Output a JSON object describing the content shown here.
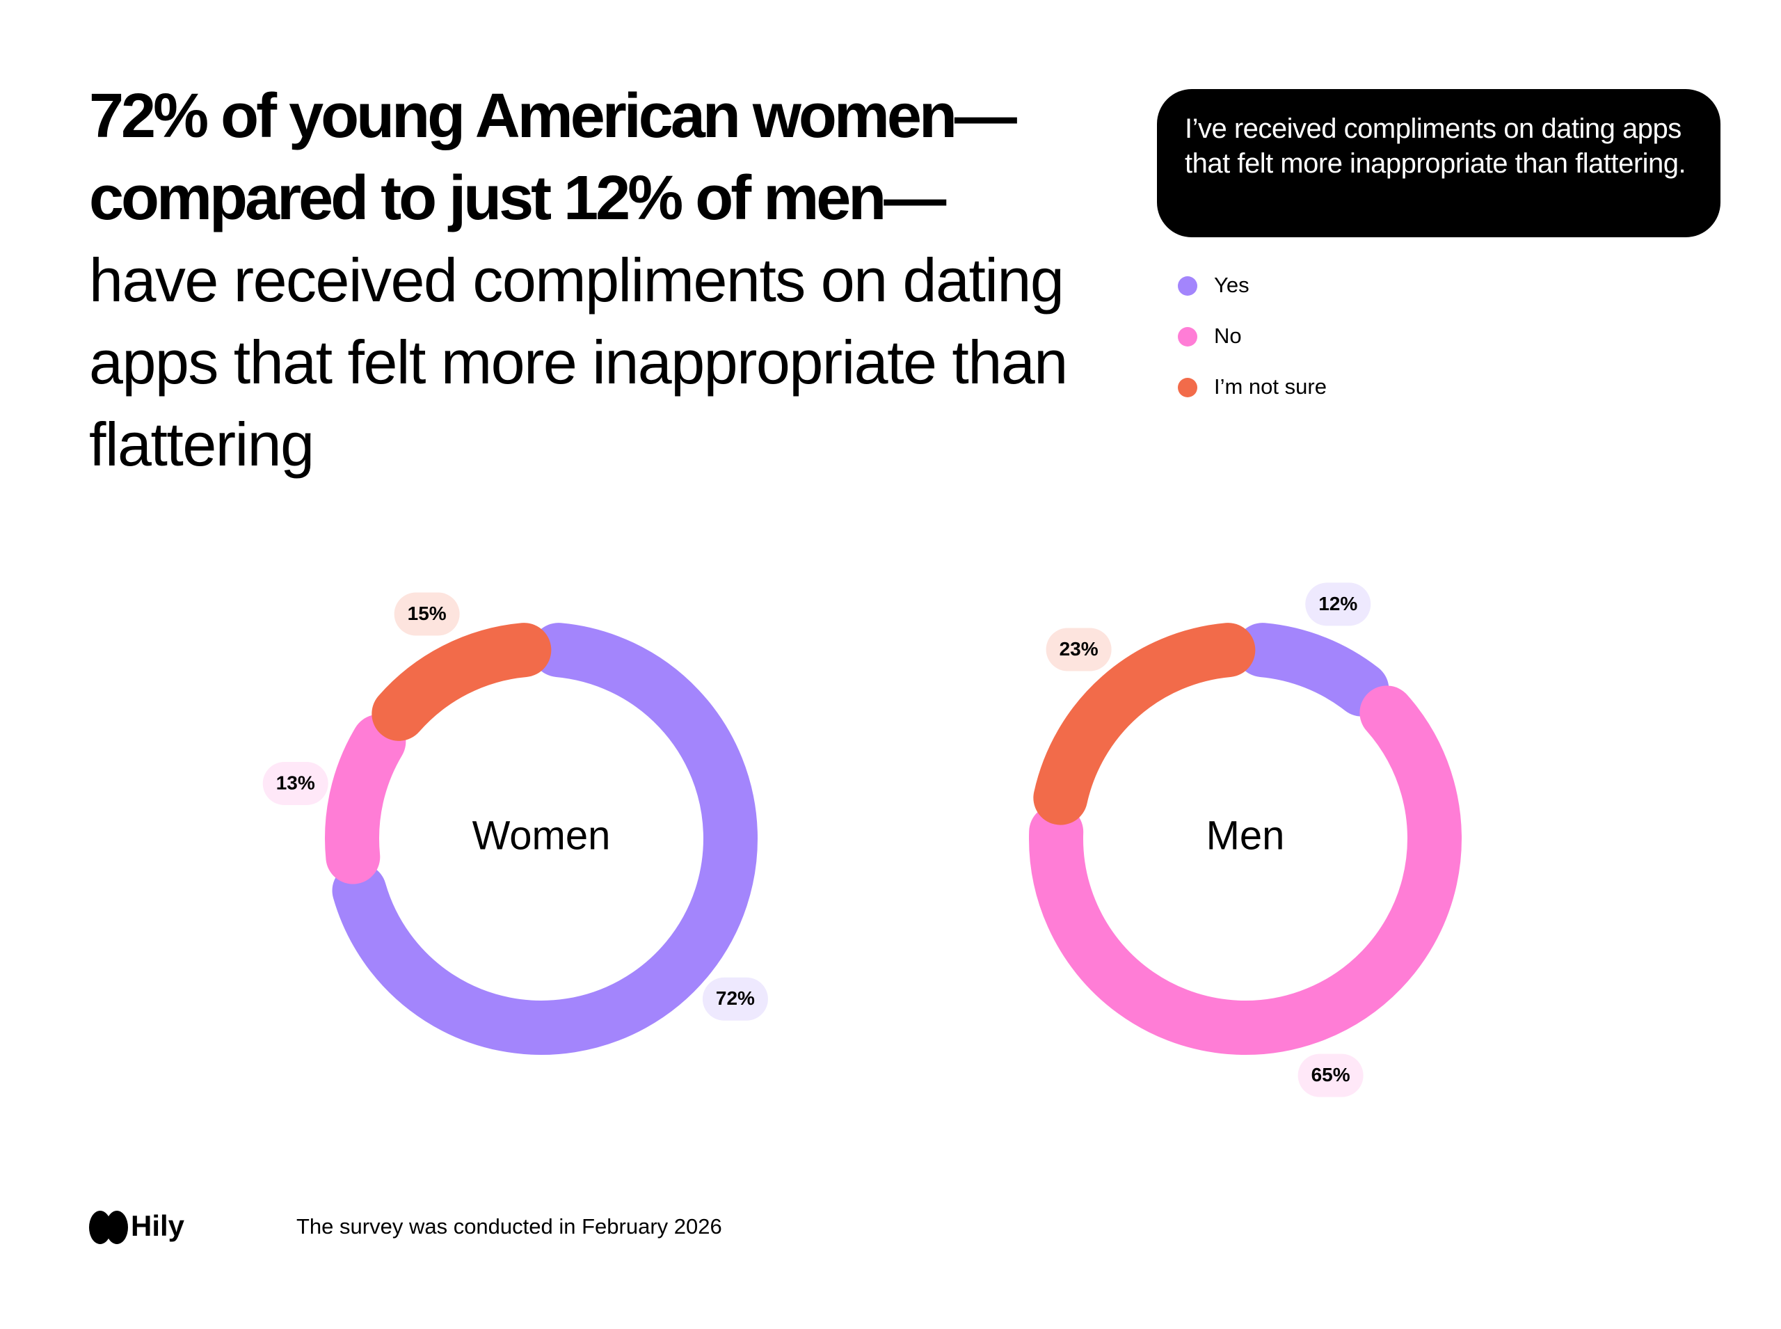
{
  "headline": {
    "bold": "72% of young American women—compared to just 12% of men—",
    "regular": "have received compliments on dating apps that felt more inappropriate than flattering"
  },
  "question": "I’ve received compliments on dating apps that felt more inappropriate than flattering.",
  "footer": {
    "logo": "Hily",
    "note": "The survey was conducted in February 2026"
  },
  "chart_data": [
    {
      "type": "donut",
      "label": "Women",
      "categories": [
        "Yes",
        "No",
        "I’m not sure"
      ],
      "values": [
        72,
        13,
        15
      ],
      "value_labels": [
        "72%",
        "13%",
        "15%"
      ],
      "colors": [
        "#a385fc",
        "#ff7dd6",
        "#f26b4a"
      ]
    },
    {
      "type": "donut",
      "label": "Men",
      "categories": [
        "Yes",
        "No",
        "I’m not sure"
      ],
      "values": [
        12,
        65,
        23
      ],
      "value_labels": [
        "12%",
        "65%",
        "23%"
      ],
      "colors": [
        "#a385fc",
        "#ff7dd6",
        "#f26b4a"
      ]
    }
  ]
}
